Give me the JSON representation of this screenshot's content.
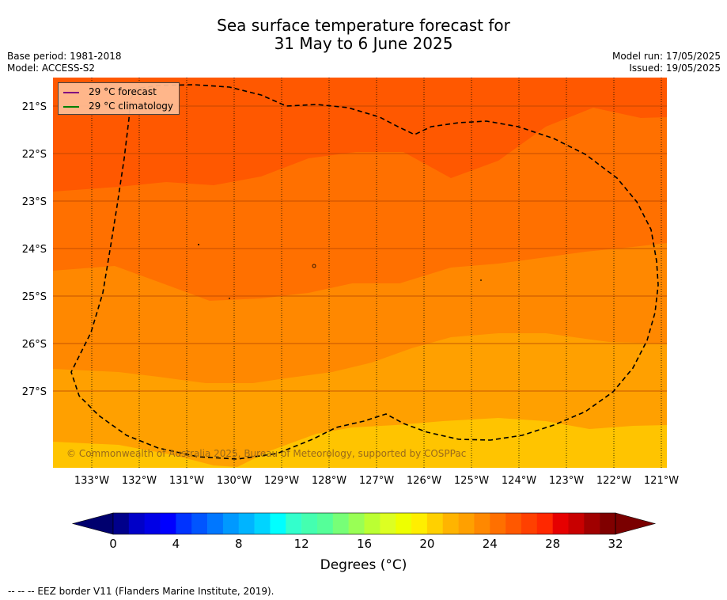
{
  "title": {
    "line1": "Sea surface temperature forecast for",
    "line2": "31 May to 6 June 2025"
  },
  "info": {
    "base_period": "Base period: 1981-2018",
    "model": "Model: ACCESS-S2",
    "model_run": "Model run: 17/05/2025",
    "issued": "Issued: 19/05/2025"
  },
  "legend": {
    "forecast_label": "29 °C  forecast",
    "forecast_color": "#800080",
    "climatology_label": "29 °C  climatology",
    "climatology_color": "#008000"
  },
  "copyright": "© Commonwealth of Australia 2025, Bureau of Meteorology, supported by COSPPac",
  "axes": {
    "lon_labels": [
      "133°W",
      "132°W",
      "131°W",
      "130°W",
      "129°W",
      "128°W",
      "127°W",
      "126°W",
      "125°W",
      "124°W",
      "123°W",
      "122°W",
      "121°W"
    ],
    "lat_labels": [
      "21°S",
      "22°S",
      "23°S",
      "24°S",
      "25°S",
      "26°S",
      "27°S"
    ]
  },
  "colorbar": {
    "title": "Degrees (°C)",
    "tick_labels": [
      "0",
      "4",
      "8",
      "12",
      "16",
      "20",
      "24",
      "28",
      "32"
    ],
    "colors": [
      "#00008b",
      "#0000c8",
      "#0000e6",
      "#0000ff",
      "#0033ff",
      "#0055ff",
      "#0077ff",
      "#0099ff",
      "#00b4ff",
      "#00d4ff",
      "#00ffff",
      "#33ffcc",
      "#44ffb0",
      "#55ff99",
      "#77ff77",
      "#99ff55",
      "#bbff33",
      "#ddff22",
      "#eeff00",
      "#ffee00",
      "#ffd000",
      "#ffb400",
      "#ffa000",
      "#ff8800",
      "#ff7000",
      "#ff5800",
      "#ff4000",
      "#ff2800",
      "#e60000",
      "#c80000",
      "#a00000",
      "#800000"
    ],
    "under_color": "#00006e",
    "over_color": "#7a0000"
  },
  "footer": "--  --  -- EEZ border V11 (Flanders Marine Institute, 2019).",
  "map_colors": {
    "band_29": "#ff5800",
    "band_28": "#ff7000",
    "band_27": "#ff8800",
    "band_26": "#ffa000",
    "band_25": "#ffc400"
  }
}
